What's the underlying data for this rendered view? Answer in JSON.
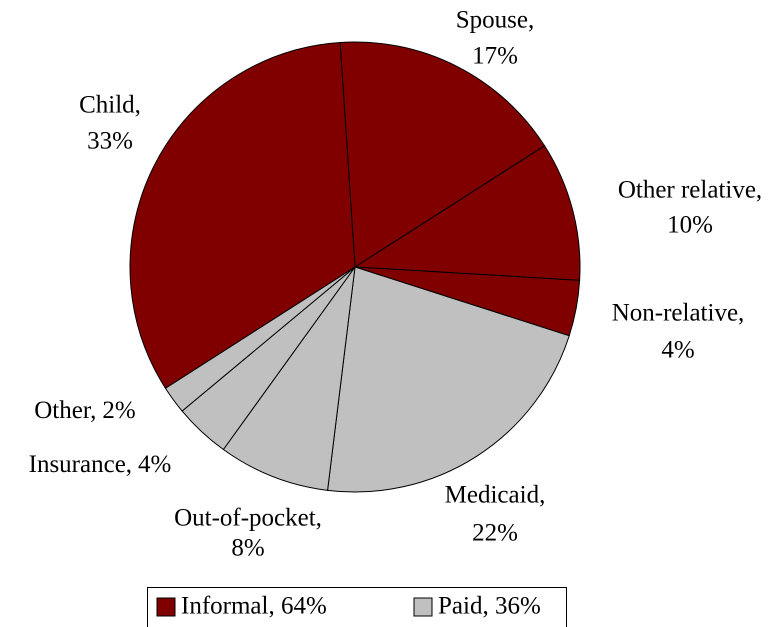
{
  "chart_data": {
    "type": "pie",
    "categories": [
      "Spouse,",
      "Other relative,",
      "Non-relative,",
      "Medicaid,",
      "Out-of-pocket,",
      "Insurance,",
      "Other,",
      "Child,"
    ],
    "values": [
      17,
      10,
      4,
      22,
      8,
      4,
      2,
      33
    ],
    "value_labels": [
      "17%",
      "10%",
      "4%",
      "22%",
      "8%",
      "4%",
      "2%",
      "33%"
    ],
    "colors": [
      "#800000",
      "#800000",
      "#800000",
      "#c0c0c0",
      "#c0c0c0",
      "#c0c0c0",
      "#c0c0c0",
      "#800000"
    ],
    "legend": [
      {
        "name": "Informal, 64%",
        "color": "#800000"
      },
      {
        "name": "Paid, 36%",
        "color": "#c0c0c0"
      }
    ]
  }
}
